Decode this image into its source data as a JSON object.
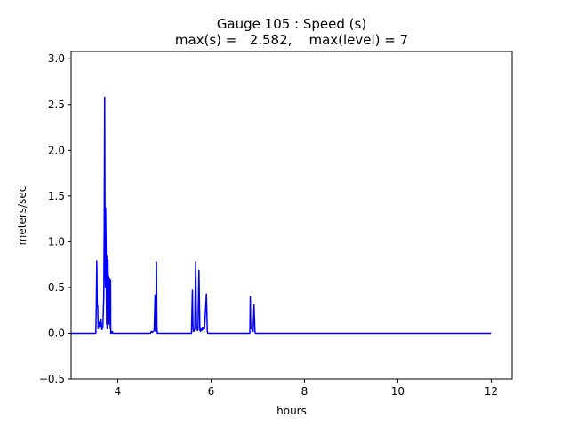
{
  "chart_data": {
    "type": "line",
    "title": "Gauge 105 : Speed (s)",
    "subtitle": "max(s) =   2.582,    max(level) = 7",
    "xlabel": "hours",
    "ylabel": "meters/sec",
    "xlim": [
      3.0,
      12.45
    ],
    "ylim": [
      -0.5,
      3.08
    ],
    "xticks": [
      4,
      6,
      8,
      10,
      12
    ],
    "yticks": [
      -0.5,
      0.0,
      0.5,
      1.0,
      1.5,
      2.0,
      2.5,
      3.0
    ],
    "xtick_labels": [
      "4",
      "6",
      "8",
      "10",
      "12"
    ],
    "ytick_labels": [
      "−0.5",
      "0.0",
      "0.5",
      "1.0",
      "1.5",
      "2.0",
      "2.5",
      "3.0"
    ],
    "grid": false,
    "series_color": "#0000ff",
    "series": [
      {
        "x": [
          3.0,
          3.53,
          3.54,
          3.55,
          3.56,
          3.57,
          3.58,
          3.59,
          3.6,
          3.62,
          3.64,
          3.66,
          3.68,
          3.7,
          3.71,
          3.72,
          3.73,
          3.735,
          3.74,
          3.75,
          3.76,
          3.765,
          3.77,
          3.78,
          3.79,
          3.8,
          3.805,
          3.81,
          3.82,
          3.83,
          3.84,
          3.845,
          3.85,
          3.86,
          3.87,
          3.88,
          3.9,
          3.92,
          4.7,
          4.72,
          4.74,
          4.76,
          4.78,
          4.8,
          4.81,
          4.82,
          4.83,
          4.84,
          4.845,
          4.85,
          4.86,
          4.88,
          5.58,
          5.6,
          5.61,
          5.62,
          5.63,
          5.65,
          5.67,
          5.68,
          5.69,
          5.7,
          5.71,
          5.72,
          5.74,
          5.76,
          5.77,
          5.78,
          5.79,
          5.8,
          5.82,
          5.84,
          5.86,
          5.9,
          5.92,
          5.93,
          5.94,
          5.95,
          5.97,
          6.82,
          6.83,
          6.84,
          6.85,
          6.86,
          6.88,
          6.9,
          6.92,
          6.94,
          6.95,
          6.96,
          6.98,
          12.0
        ],
        "y": [
          0.0,
          0.0,
          0.3,
          0.79,
          0.3,
          0.3,
          0.05,
          0.08,
          0.12,
          0.06,
          0.15,
          0.04,
          0.06,
          0.4,
          1.2,
          2.58,
          0.7,
          0.5,
          1.37,
          0.9,
          0.1,
          0.85,
          0.05,
          0.5,
          0.8,
          0.3,
          0.62,
          0.1,
          0.55,
          0.6,
          0.05,
          0.58,
          0.0,
          0.02,
          0.0,
          0.02,
          0.0,
          0.0,
          0.0,
          0.02,
          0.01,
          0.02,
          0.03,
          0.42,
          0.02,
          0.02,
          0.78,
          0.08,
          0.02,
          0.0,
          0.0,
          0.0,
          0.0,
          0.47,
          0.1,
          0.02,
          0.02,
          0.05,
          0.78,
          0.35,
          0.04,
          0.04,
          0.03,
          0.04,
          0.69,
          0.04,
          0.02,
          0.05,
          0.04,
          0.03,
          0.06,
          0.04,
          0.05,
          0.43,
          0.02,
          0.0,
          0.0,
          0.0,
          0.0,
          0.0,
          0.0,
          0.4,
          0.05,
          0.06,
          0.04,
          0.02,
          0.31,
          0.02,
          0.0,
          0.0,
          0.0,
          0.0
        ]
      }
    ]
  }
}
